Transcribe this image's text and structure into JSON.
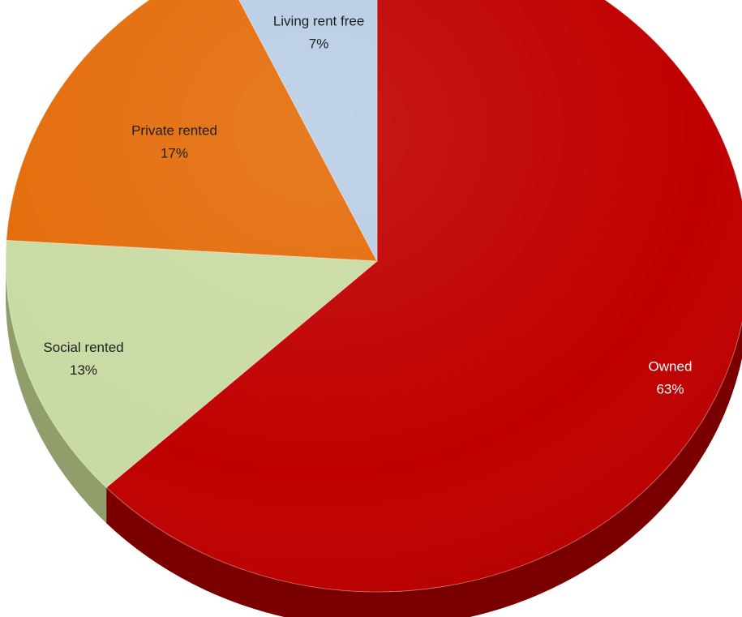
{
  "chart_data": {
    "type": "pie",
    "style": "3d",
    "title": "",
    "slices": [
      {
        "label": "Owned",
        "value": 63,
        "value_label": "63%",
        "color": "#c00000",
        "side_color": "#7a0000",
        "text_color": "#ffffff"
      },
      {
        "label": "Social rented",
        "value": 13,
        "value_label": "13%",
        "color": "#c9dba4",
        "side_color": "#8f9e6a",
        "text_color": "#1f1f1f"
      },
      {
        "label": "Private rented",
        "value": 17,
        "value_label": "17%",
        "color": "#e46c0a",
        "side_color": "#a54d06",
        "text_color": "#1f1f1f"
      },
      {
        "label": "Living rent free",
        "value": 7,
        "value_label": "7%",
        "color": "#b9cde5",
        "side_color": "#8a9db3",
        "text_color": "#1f1f1f"
      }
    ]
  }
}
